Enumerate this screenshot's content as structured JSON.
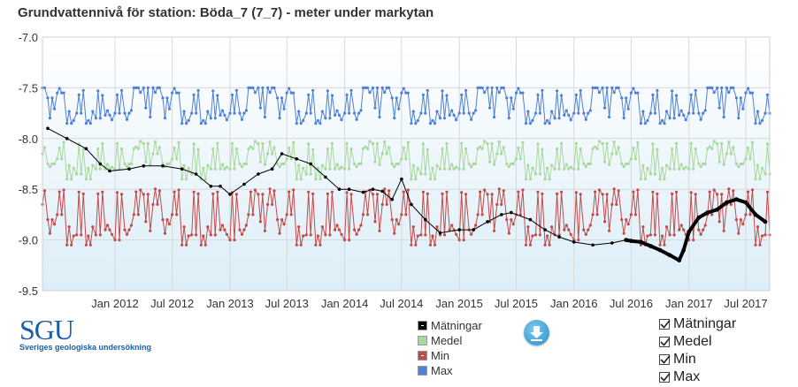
{
  "chart_title": "Grundvattennivå för station: Böda_7 (7_7) - meter under markytan",
  "logo": {
    "main": "SGU",
    "sub": "Sveriges geologiska undersökning"
  },
  "legend": [
    {
      "label": "Mätningar",
      "color": "#000000"
    },
    {
      "label": "Medel",
      "color": "#a8d89c"
    },
    {
      "label": "Min",
      "color": "#c44a4a"
    },
    {
      "label": "Max",
      "color": "#4f7fd8"
    }
  ],
  "toggles": [
    {
      "label": "Mätningar",
      "checked": true
    },
    {
      "label": "Medel",
      "checked": true
    },
    {
      "label": "Min",
      "checked": true
    },
    {
      "label": "Max",
      "checked": true
    }
  ],
  "download_icon": "download-arrow-icon",
  "chart_data": {
    "type": "line",
    "title": "Grundvattennivå för station: Böda_7 (7_7) - meter under markytan",
    "ylim": [
      -9.5,
      -7.0
    ],
    "yticks": [
      "-7.0",
      "-7.5",
      "-8.0",
      "-8.5",
      "-9.0",
      "-9.5"
    ],
    "ytick_values": [
      -7.0,
      -7.5,
      -8.0,
      -8.5,
      -9.0,
      -9.5
    ],
    "xlim": [
      "2011-05-15",
      "2017-09-15"
    ],
    "xticks": [
      {
        "label": "Jan 2012",
        "date": "2012-01-01"
      },
      {
        "label": "Jul 2012",
        "date": "2012-07-01"
      },
      {
        "label": "Jan 2013",
        "date": "2013-01-01"
      },
      {
        "label": "Jul 2013",
        "date": "2013-07-01"
      },
      {
        "label": "Jan 2014",
        "date": "2014-01-01"
      },
      {
        "label": "Jul 2014",
        "date": "2014-07-01"
      },
      {
        "label": "Jan 2015",
        "date": "2015-01-01"
      },
      {
        "label": "Jul 2015",
        "date": "2015-07-01"
      },
      {
        "label": "Jan 2016",
        "date": "2016-01-01"
      },
      {
        "label": "Jul 2016",
        "date": "2016-07-01"
      },
      {
        "label": "Jan 2017",
        "date": "2017-01-01"
      },
      {
        "label": "Jul 2017",
        "date": "2017-07-01"
      }
    ],
    "grid": true,
    "stat_series": [
      {
        "name": "Max",
        "color": "#4f7fd8",
        "monthly": [
          -7.75,
          -7.75,
          -7.5,
          -7.5,
          -7.5,
          -7.6,
          -7.55,
          -7.85,
          -7.75,
          -7.85,
          -7.8,
          -7.77
        ],
        "biweekly": [
          -7.5,
          -7.72,
          -7.55,
          -7.82
        ]
      },
      {
        "name": "Medel",
        "color": "#a8d89c",
        "monthly": [
          -8.3,
          -8.25,
          -8.1,
          -8.05,
          -8.15,
          -8.25,
          -8.2,
          -8.4,
          -8.35,
          -8.4,
          -8.3,
          -8.3
        ],
        "biweekly": [
          -8.08,
          -8.25,
          -8.02,
          -8.28
        ]
      },
      {
        "name": "Min",
        "color": "#c44a4a",
        "monthly": [
          -9.0,
          -8.9,
          -8.75,
          -8.55,
          -8.65,
          -8.8,
          -8.75,
          -9.05,
          -8.95,
          -9.05,
          -8.95,
          -8.9
        ],
        "biweekly": [
          -8.5,
          -8.85,
          -8.48,
          -8.95
        ]
      }
    ],
    "measurements": {
      "name": "Mätningar",
      "color": "#000000",
      "points": [
        {
          "x": "2011-06-01",
          "y": -7.9
        },
        {
          "x": "2011-08-01",
          "y": -8.0
        },
        {
          "x": "2011-10-01",
          "y": -8.1
        },
        {
          "x": "2011-11-15",
          "y": -8.25
        },
        {
          "x": "2011-12-15",
          "y": -8.32
        },
        {
          "x": "2012-02-15",
          "y": -8.3
        },
        {
          "x": "2012-04-01",
          "y": -8.27
        },
        {
          "x": "2012-06-01",
          "y": -8.27
        },
        {
          "x": "2012-08-01",
          "y": -8.3
        },
        {
          "x": "2012-09-15",
          "y": -8.35
        },
        {
          "x": "2012-11-01",
          "y": -8.47
        },
        {
          "x": "2012-12-01",
          "y": -8.47
        },
        {
          "x": "2013-01-01",
          "y": -8.55
        },
        {
          "x": "2013-02-15",
          "y": -8.45
        },
        {
          "x": "2013-04-01",
          "y": -8.35
        },
        {
          "x": "2013-05-15",
          "y": -8.3
        },
        {
          "x": "2013-06-15",
          "y": -8.15
        },
        {
          "x": "2013-08-01",
          "y": -8.2
        },
        {
          "x": "2013-09-15",
          "y": -8.25
        },
        {
          "x": "2013-11-01",
          "y": -8.38
        },
        {
          "x": "2013-12-15",
          "y": -8.5
        },
        {
          "x": "2014-01-15",
          "y": -8.5
        },
        {
          "x": "2014-03-01",
          "y": -8.53
        },
        {
          "x": "2014-04-01",
          "y": -8.5
        },
        {
          "x": "2014-05-01",
          "y": -8.52
        },
        {
          "x": "2014-06-01",
          "y": -8.6
        },
        {
          "x": "2014-07-01",
          "y": -8.4
        },
        {
          "x": "2014-08-01",
          "y": -8.65
        },
        {
          "x": "2014-09-15",
          "y": -8.8
        },
        {
          "x": "2014-11-01",
          "y": -8.93
        },
        {
          "x": "2015-01-01",
          "y": -8.9
        },
        {
          "x": "2015-02-15",
          "y": -8.9
        },
        {
          "x": "2015-04-01",
          "y": -8.82
        },
        {
          "x": "2015-05-15",
          "y": -8.75
        },
        {
          "x": "2015-06-15",
          "y": -8.73
        },
        {
          "x": "2015-08-15",
          "y": -8.8
        },
        {
          "x": "2015-10-01",
          "y": -8.9
        },
        {
          "x": "2015-11-15",
          "y": -8.97
        },
        {
          "x": "2016-01-01",
          "y": -9.02
        },
        {
          "x": "2016-03-01",
          "y": -9.05
        },
        {
          "x": "2016-05-01",
          "y": -9.03
        },
        {
          "x": "2016-06-15",
          "y": -9.0
        },
        {
          "x": "2016-07-01",
          "y": -9.01
        },
        {
          "x": "2016-08-01",
          "y": -9.02
        },
        {
          "x": "2016-09-01",
          "y": -9.06
        },
        {
          "x": "2016-10-01",
          "y": -9.1
        },
        {
          "x": "2016-11-01",
          "y": -9.15
        },
        {
          "x": "2016-12-01",
          "y": -9.2
        },
        {
          "x": "2016-12-15",
          "y": -9.1
        },
        {
          "x": "2017-01-01",
          "y": -8.92
        },
        {
          "x": "2017-02-01",
          "y": -8.78
        },
        {
          "x": "2017-03-01",
          "y": -8.73
        },
        {
          "x": "2017-04-01",
          "y": -8.7
        },
        {
          "x": "2017-05-01",
          "y": -8.63
        },
        {
          "x": "2017-06-01",
          "y": -8.6
        },
        {
          "x": "2017-07-01",
          "y": -8.63
        },
        {
          "x": "2017-08-01",
          "y": -8.75
        },
        {
          "x": "2017-09-01",
          "y": -8.82
        }
      ]
    }
  }
}
